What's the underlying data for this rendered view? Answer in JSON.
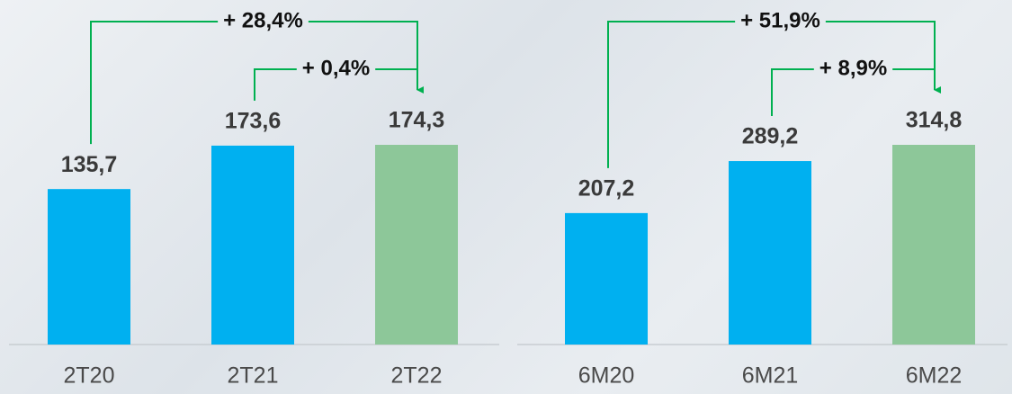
{
  "chart_data": [
    {
      "type": "bar",
      "categories": [
        "2T20",
        "2T21",
        "2T22"
      ],
      "values": [
        135.7,
        173.6,
        174.3
      ],
      "value_labels": [
        "135,7",
        "173,6",
        "174,3"
      ],
      "colors": [
        "#00b0f0",
        "#00b0f0",
        "#8dc799"
      ],
      "annotations": [
        "+ 28,4%",
        "+ 0,4%"
      ],
      "annotation_color": "#00b050"
    },
    {
      "type": "bar",
      "categories": [
        "6M20",
        "6M21",
        "6M22"
      ],
      "values": [
        207.2,
        289.2,
        314.8
      ],
      "value_labels": [
        "207,2",
        "289,2",
        "314,8"
      ],
      "colors": [
        "#00b0f0",
        "#00b0f0",
        "#8dc799"
      ],
      "annotations": [
        "+ 51,9%",
        "+ 8,9%"
      ],
      "annotation_color": "#00b050"
    }
  ]
}
